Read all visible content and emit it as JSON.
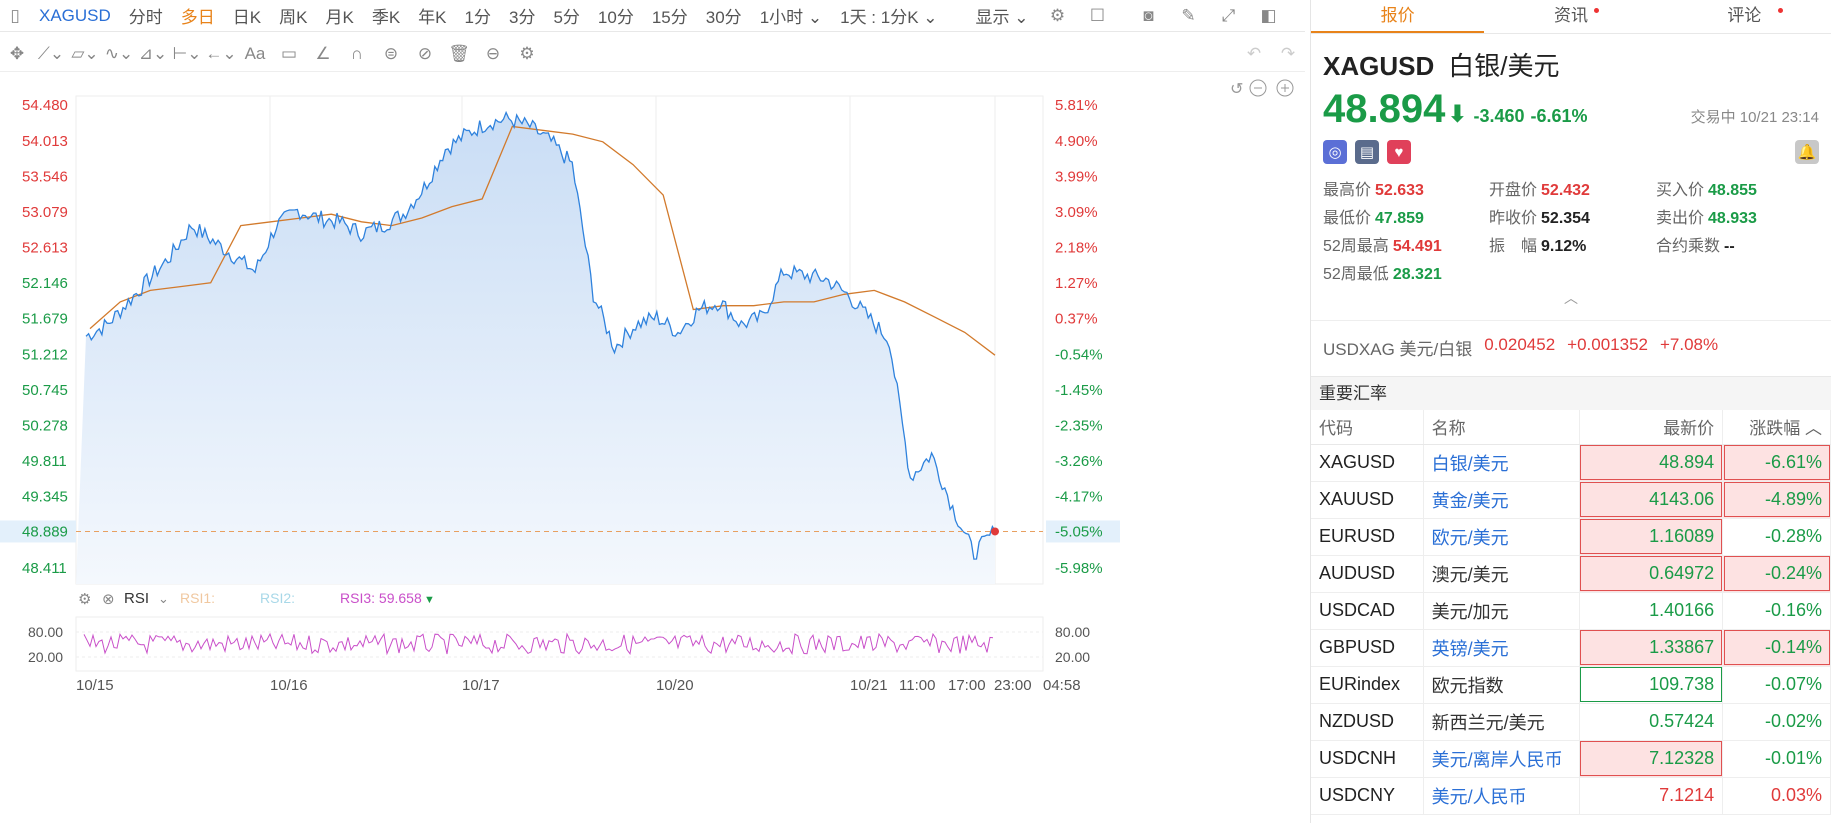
{
  "toolbar": {
    "symbol": "XAGUSD",
    "periods": [
      "分时",
      "多日",
      "日K",
      "周K",
      "月K",
      "季K",
      "年K",
      "1分",
      "3分",
      "5分",
      "10分",
      "15分",
      "30分"
    ],
    "active_period": "多日",
    "interval": "1小时",
    "span": "1天 : 1分K",
    "display": "显示"
  },
  "chart": {
    "y_left": [
      "54.480",
      "54.013",
      "53.546",
      "53.079",
      "52.613",
      "52.146",
      "51.679",
      "51.212",
      "50.745",
      "50.278",
      "49.811",
      "49.345",
      "48.889",
      "48.411"
    ],
    "y_right": [
      "5.81%",
      "4.90%",
      "3.99%",
      "3.09%",
      "2.18%",
      "1.27%",
      "0.37%",
      "-0.54%",
      "-1.45%",
      "-2.35%",
      "-3.26%",
      "-4.17%",
      "-5.05%",
      "-5.98%"
    ],
    "x_labels": [
      "10/15",
      "10/16",
      "10/17",
      "10/20",
      "10/21",
      "11:00",
      "17:00",
      "23:00",
      "04:58"
    ],
    "current_price_label": "48.889",
    "current_pct_label": "-5.05%",
    "rsi": {
      "name": "RSI",
      "rsi1_label": "RSI1:",
      "rsi2_label": "RSI2:",
      "rsi3_label": "RSI3: 59.658",
      "levels": [
        "80.00",
        "20.00"
      ]
    }
  },
  "chart_data": {
    "type": "line",
    "title": "",
    "y_range": [
      48.2,
      54.6
    ],
    "series": [
      {
        "name": "",
        "values": [
          51.45,
          51.6,
          51.9,
          52.2,
          52.5,
          52.9,
          52.7,
          52.5,
          52.3,
          52.9,
          53.1,
          53.0,
          52.95,
          52.8,
          52.9,
          53.05,
          53.4,
          53.9,
          54.1,
          54.25,
          54.3,
          54.2,
          54.0,
          53.7,
          52.0,
          51.3,
          51.6,
          51.7,
          51.5,
          51.8,
          51.9,
          51.6,
          51.7,
          52.3,
          52.25,
          52.2,
          52.0,
          51.7,
          51.4,
          49.6,
          49.9,
          49.2,
          48.6,
          48.9
        ]
      },
      {
        "name": "",
        "values": [
          51.55,
          51.9,
          52.05,
          52.1,
          52.15,
          52.9,
          52.95,
          53.0,
          53.05,
          52.95,
          52.9,
          53.0,
          53.15,
          53.25,
          54.2,
          54.15,
          54.1,
          54.0,
          53.7,
          53.3,
          51.8,
          51.85,
          51.85,
          51.9,
          51.9,
          52.0,
          52.05,
          51.9,
          51.7,
          51.5,
          51.2
        ]
      }
    ]
  },
  "right": {
    "tabs": [
      "报价",
      "资讯",
      "评论"
    ],
    "symbol": "XAGUSD",
    "name": "白银/美元",
    "price": "48.894",
    "change": "-3.460",
    "change_pct": "-6.61%",
    "status": "交易中 10/21 23:14",
    "stats": [
      {
        "l": "最高价",
        "v": "52.633",
        "c": "red"
      },
      {
        "l": "开盘价",
        "v": "52.432",
        "c": "red"
      },
      {
        "l": "买入价",
        "v": "48.855",
        "c": "green"
      },
      {
        "l": "最低价",
        "v": "47.859",
        "c": "green"
      },
      {
        "l": "昨收价",
        "v": "52.354",
        "c": "dark"
      },
      {
        "l": "卖出价",
        "v": "48.933",
        "c": "green"
      },
      {
        "l": "52周最高",
        "v": "54.491",
        "c": "red"
      },
      {
        "l": "振　幅",
        "v": "9.12%",
        "c": "dark"
      },
      {
        "l": "合约乘数",
        "v": "--",
        "c": "dark"
      },
      {
        "l": "52周最低",
        "v": "28.321",
        "c": "green"
      }
    ],
    "related": {
      "label": "USDXAG 美元/白银",
      "price": "0.020452",
      "change": "+0.001352",
      "pct": "+7.08%"
    },
    "section_title": "重要汇率",
    "table_headers": [
      "代码",
      "名称",
      "最新价",
      "涨跌幅"
    ],
    "rows": [
      {
        "code": "XAGUSD",
        "name": "白银/美元",
        "price": "48.894",
        "pct": "-6.61%",
        "link": true,
        "hl": "red",
        "pcthl": true
      },
      {
        "code": "XAUUSD",
        "name": "黄金/美元",
        "price": "4143.06",
        "pct": "-4.89%",
        "link": true,
        "hl": "red",
        "pcthl": true
      },
      {
        "code": "EURUSD",
        "name": "欧元/美元",
        "price": "1.16089",
        "pct": "-0.28%",
        "link": true,
        "hl": "red",
        "pcthl": false
      },
      {
        "code": "AUDUSD",
        "name": "澳元/美元",
        "price": "0.64972",
        "pct": "-0.24%",
        "link": false,
        "hl": "red",
        "pcthl": true
      },
      {
        "code": "USDCAD",
        "name": "美元/加元",
        "price": "1.40166",
        "pct": "-0.16%",
        "link": false,
        "hl": "",
        "pcthl": false
      },
      {
        "code": "GBPUSD",
        "name": "英镑/美元",
        "price": "1.33867",
        "pct": "-0.14%",
        "link": true,
        "hl": "red",
        "pcthl": true
      },
      {
        "code": "EURindex",
        "name": "欧元指数",
        "price": "109.738",
        "pct": "-0.07%",
        "link": false,
        "hl": "green",
        "pcthl": false
      },
      {
        "code": "NZDUSD",
        "name": "新西兰元/美元",
        "price": "0.57424",
        "pct": "-0.02%",
        "link": false,
        "hl": "",
        "pcthl": false
      },
      {
        "code": "USDCNH",
        "name": "美元/离岸人民币",
        "price": "7.12328",
        "pct": "-0.01%",
        "link": true,
        "hl": "red",
        "pcthl": false
      },
      {
        "code": "USDCNY",
        "name": "美元/人民币",
        "price": "7.1214",
        "pct": "0.03%",
        "link": true,
        "hl": "",
        "pcthl": false
      }
    ]
  }
}
